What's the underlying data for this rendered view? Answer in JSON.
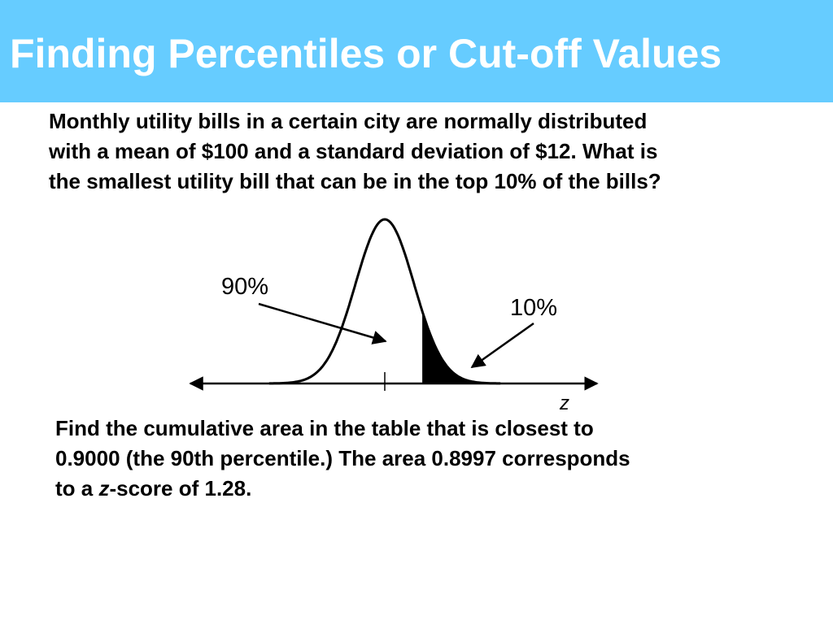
{
  "slide": {
    "title": "Finding Percentiles or Cut-off Values",
    "title_bar_color": "#66ccff"
  },
  "problem": {
    "lines": [
      "Monthly utility bills in a certain city are normally distributed",
      "with a mean of $100 and a standard deviation of $12. What is",
      "the smallest utility bill that can be in the top 10% of the bills?"
    ]
  },
  "diagram": {
    "mean": 0,
    "cutoff_z": 1.28,
    "left_area_label": "90%",
    "right_area_label": "10%",
    "axis_label": "z",
    "shaded_region": "right tail"
  },
  "solution": {
    "line1": "Find the cumulative area in the table that is closest to",
    "line2": "0.9000 (the 90th percentile.) The area  0.8997 corresponds",
    "line3_prefix": "to a ",
    "line3_var": "z",
    "line3_suffix": "-score of 1.28."
  }
}
